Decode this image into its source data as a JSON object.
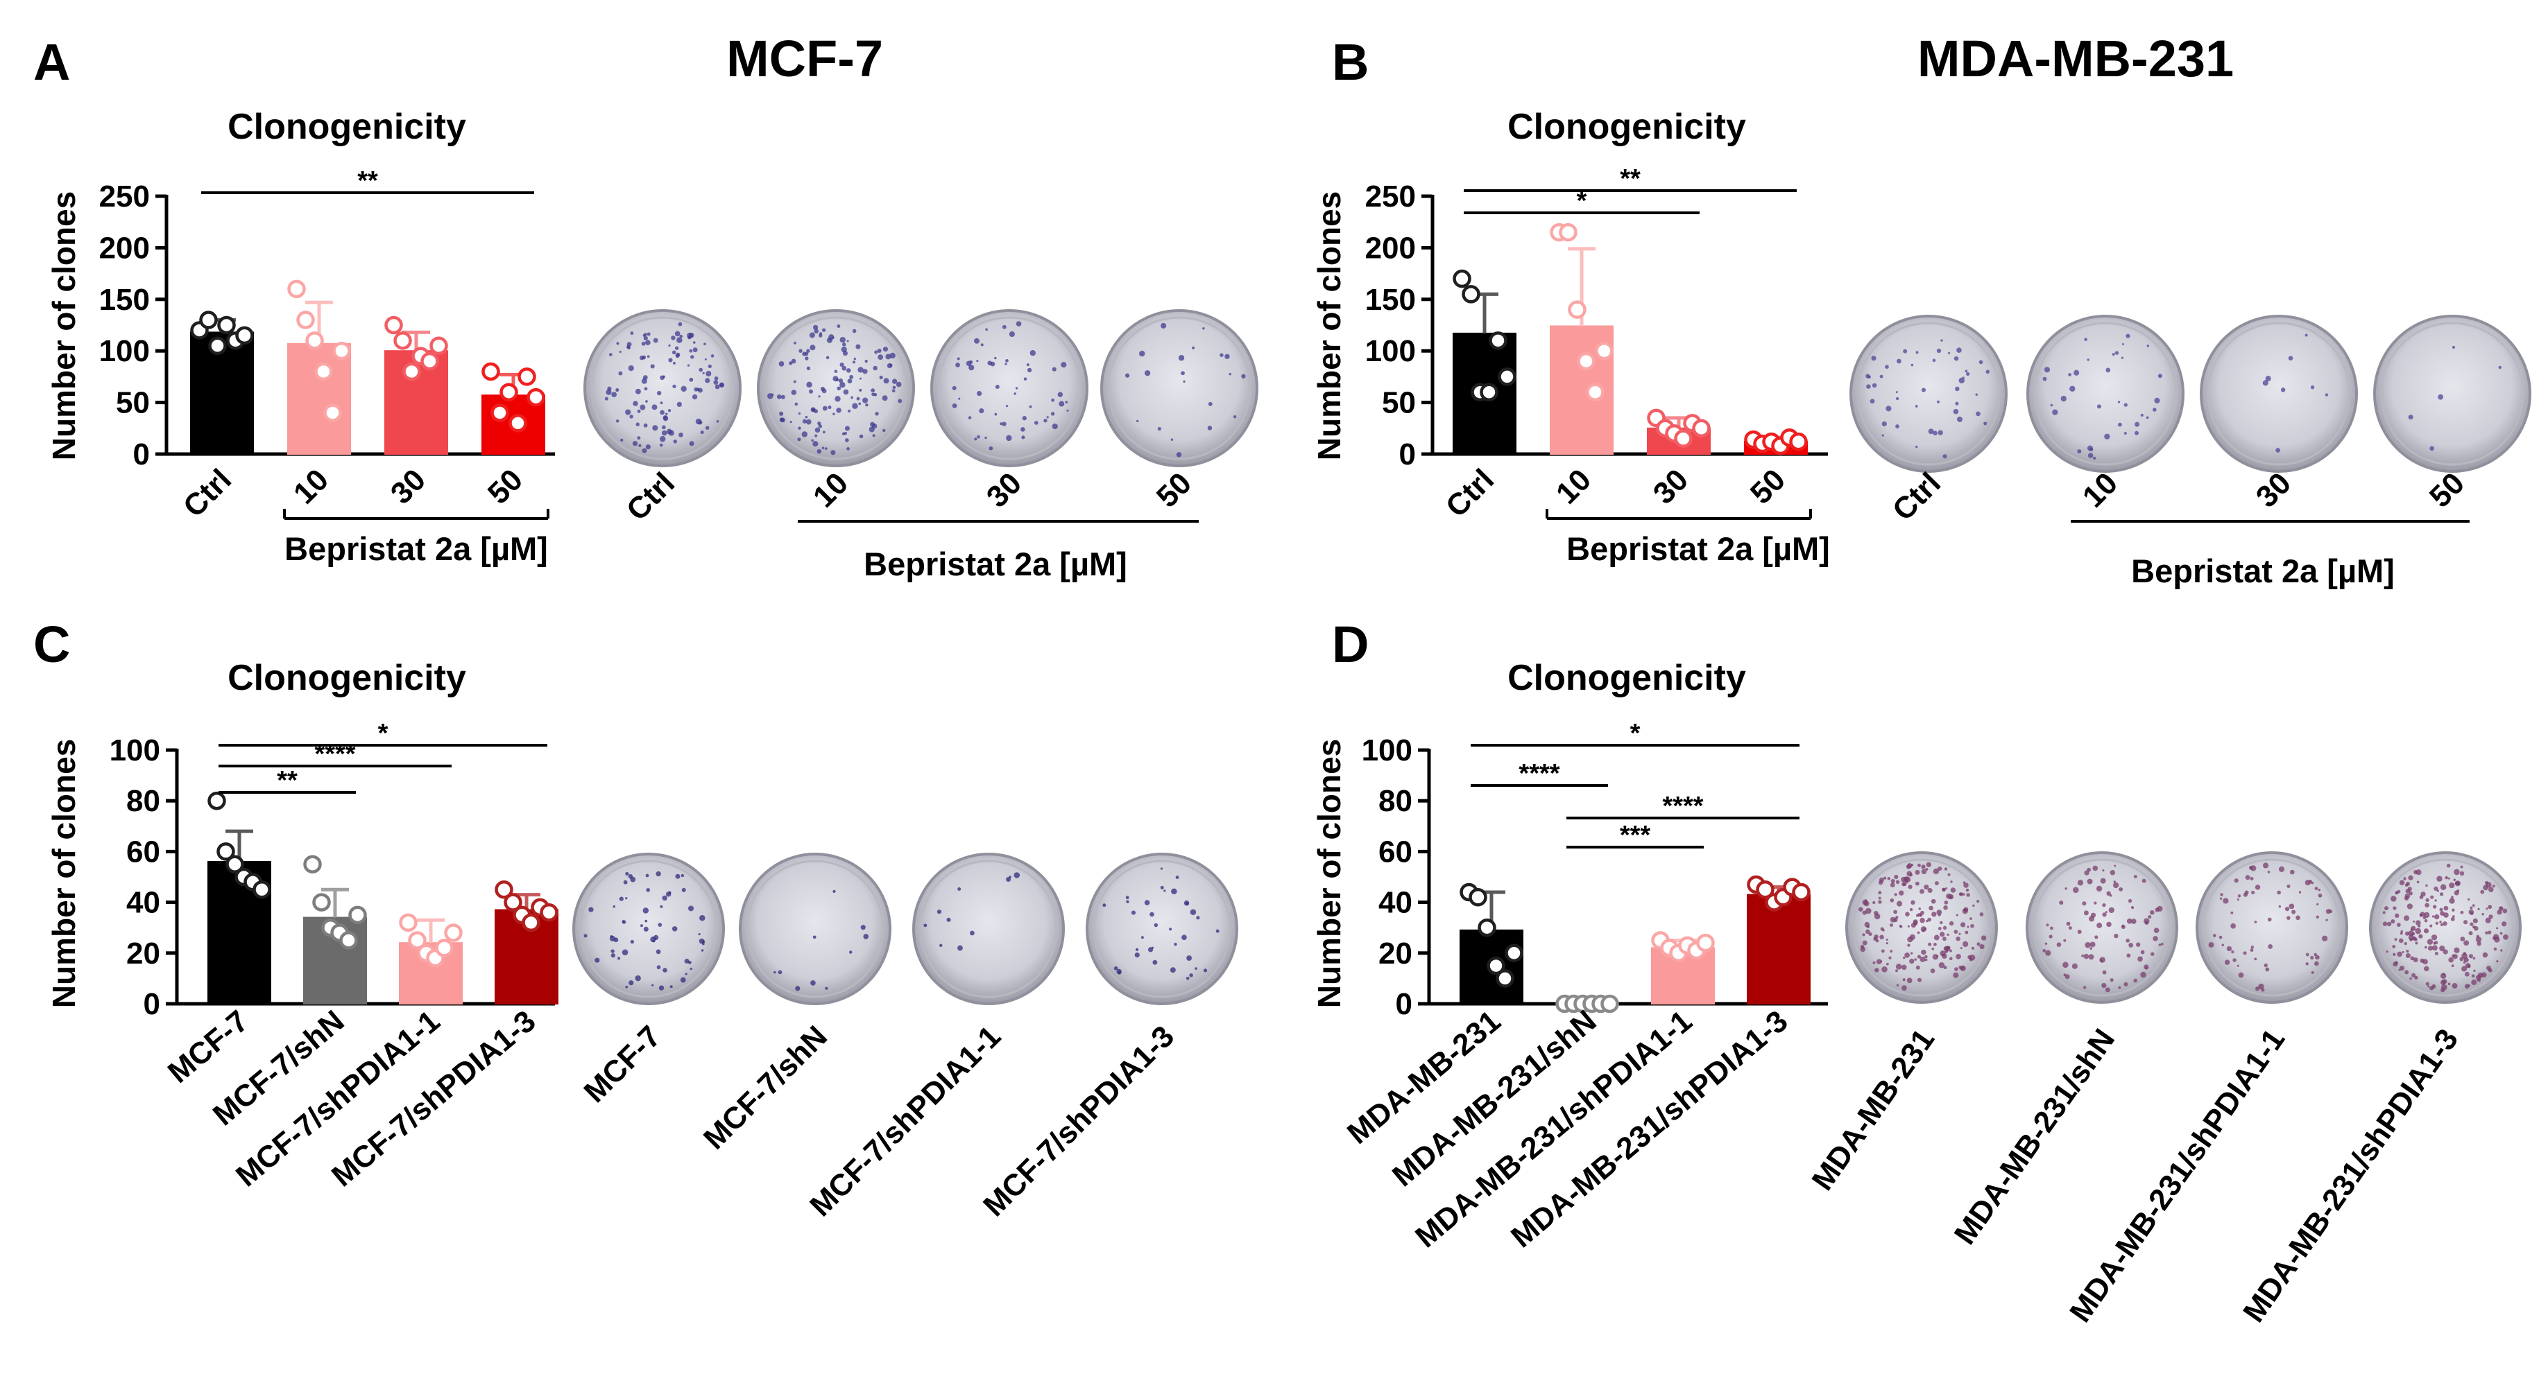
{
  "figure": {
    "cell_lines": {
      "left": "MCF-7",
      "right": "MDA-MB-231"
    }
  },
  "chart_data": [
    {
      "panel": "A",
      "type": "bar",
      "title": "Clonogenicity",
      "ylabel": "Number of clones",
      "ylim": [
        0,
        250
      ],
      "yticks": [
        0,
        50,
        100,
        150,
        200,
        250
      ],
      "categories": [
        "Ctrl",
        "10",
        "30",
        "50"
      ],
      "values": [
        118,
        107,
        100,
        57
      ],
      "errors": [
        12,
        40,
        18,
        20
      ],
      "colors": [
        "#000000",
        "#fa9a9a",
        "#f0474f",
        "#ee0000"
      ],
      "points": [
        [
          120,
          130,
          105,
          125,
          110,
          115
        ],
        [
          160,
          130,
          110,
          80,
          40,
          100
        ],
        [
          125,
          110,
          80,
          95,
          90,
          105
        ],
        [
          80,
          40,
          60,
          30,
          75,
          55
        ]
      ],
      "group_label": "Bepristat 2a [µM]",
      "group_span": [
        1,
        3
      ],
      "significance": [
        {
          "from": 0,
          "to": 3,
          "label": "**"
        }
      ],
      "dish_labels": [
        "Ctrl",
        "10",
        "30",
        "50"
      ],
      "dish_group_label": "Bepristat 2a [µM]"
    },
    {
      "panel": "B",
      "type": "bar",
      "title": "Clonogenicity",
      "ylabel": "Number of clones",
      "ylim": [
        0,
        250
      ],
      "yticks": [
        0,
        50,
        100,
        150,
        200,
        250
      ],
      "categories": [
        "Ctrl",
        "10",
        "30",
        "50"
      ],
      "values": [
        117,
        124,
        25,
        12
      ],
      "errors": [
        38,
        75,
        10,
        4
      ],
      "colors": [
        "#000000",
        "#fa9a9a",
        "#f0474f",
        "#ee0000"
      ],
      "points": [
        [
          170,
          155,
          60,
          60,
          110,
          75
        ],
        [
          215,
          215,
          140,
          90,
          60,
          100
        ],
        [
          35,
          25,
          20,
          15,
          30,
          25
        ],
        [
          14,
          10,
          12,
          8,
          16,
          12
        ]
      ],
      "group_label": "Bepristat 2a [µM]",
      "group_span": [
        1,
        3
      ],
      "significance": [
        {
          "from": 0,
          "to": 2,
          "label": "*"
        },
        {
          "from": 0,
          "to": 3,
          "label": "**"
        }
      ],
      "dish_labels": [
        "Ctrl",
        "10",
        "30",
        "50"
      ],
      "dish_group_label": "Bepristat 2a [µM]"
    },
    {
      "panel": "C",
      "type": "bar",
      "title": "Clonogenicity",
      "ylabel": "Number of clones",
      "ylim": [
        0,
        100
      ],
      "yticks": [
        0,
        20,
        40,
        60,
        80,
        100
      ],
      "categories": [
        "MCF-7",
        "MCF-7/shN",
        "MCF-7/shPDIA1-1",
        "MCF-7/shPDIA1-3"
      ],
      "values": [
        56,
        34,
        24,
        37
      ],
      "errors": [
        12,
        11,
        9,
        6
      ],
      "colors": [
        "#000000",
        "#6b6b6b",
        "#fa9a9a",
        "#a80000"
      ],
      "points": [
        [
          80,
          60,
          55,
          50,
          48,
          45
        ],
        [
          55,
          40,
          30,
          28,
          25,
          35
        ],
        [
          32,
          25,
          20,
          18,
          22,
          28
        ],
        [
          45,
          40,
          35,
          32,
          38,
          36
        ]
      ],
      "significance": [
        {
          "from": 0,
          "to": 1,
          "label": "**"
        },
        {
          "from": 0,
          "to": 2,
          "label": "****"
        },
        {
          "from": 0,
          "to": 3,
          "label": "*"
        }
      ],
      "dish_labels": [
        "MCF-7",
        "MCF-7/shN",
        "MCF-7/shPDIA1-1",
        "MCF-7/shPDIA1-3"
      ]
    },
    {
      "panel": "D",
      "type": "bar",
      "title": "Clonogenicity",
      "ylabel": "Number of clones",
      "ylim": [
        0,
        100
      ],
      "yticks": [
        0,
        20,
        40,
        60,
        80,
        100
      ],
      "categories": [
        "MDA-MB-231",
        "MDA-MB-231/shN",
        "MDA-MB-231/shPDIA1-1",
        "MDA-MB-231/shPDIA1-3"
      ],
      "values": [
        29,
        0,
        22,
        43
      ],
      "errors": [
        15,
        0,
        3,
        3
      ],
      "colors": [
        "#000000",
        "#ffffff",
        "#fa9a9a",
        "#a80000"
      ],
      "points": [
        [
          44,
          42,
          30,
          15,
          10,
          20
        ],
        [
          0,
          0,
          0,
          0,
          0,
          0
        ],
        [
          25,
          22,
          20,
          23,
          21,
          24
        ],
        [
          47,
          45,
          40,
          42,
          46,
          44
        ]
      ],
      "significance": [
        {
          "from": 0,
          "to": 1,
          "label": "****"
        },
        {
          "from": 0,
          "to": 3,
          "label": "*"
        },
        {
          "from": 1,
          "to": 3,
          "label": "****"
        },
        {
          "from": 1,
          "to": 2,
          "label": "***"
        }
      ],
      "dish_labels": [
        "MDA-MB-231",
        "MDA-MB-231/shN",
        "MDA-MB-231/shPDIA1-1",
        "MDA-MB-231/shPDIA1-3"
      ]
    }
  ]
}
